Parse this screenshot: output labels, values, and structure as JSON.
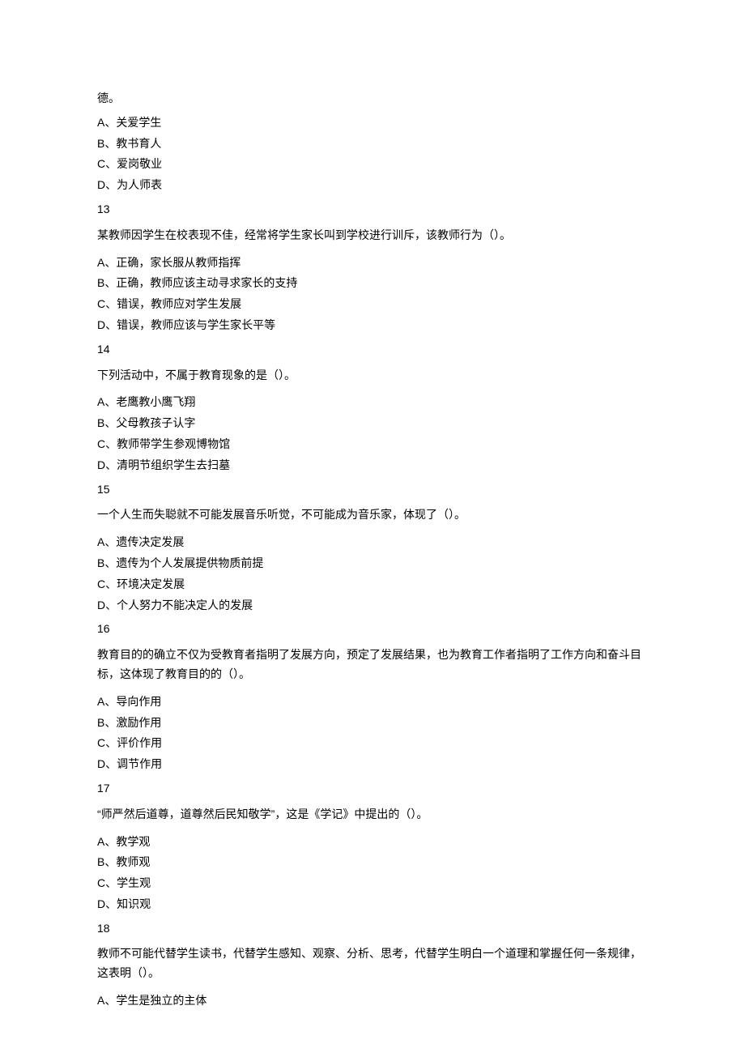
{
  "fragment_top": "德。",
  "top_options": [
    "A、关爱学生",
    "B、教书育人",
    "C、爱岗敬业",
    "D、为人师表"
  ],
  "questions": [
    {
      "num": "13",
      "stem": "某教师因学生在校表现不佳，经常将学生家长叫到学校进行训斥，该教师行为（）。",
      "options": [
        "A、正确，家长服从教师指挥",
        "B、正确，教师应该主动寻求家长的支持",
        "C、错误，教师应对学生发展",
        "D、错误，教师应该与学生家长平等"
      ]
    },
    {
      "num": "14",
      "stem": "下列活动中，不属于教育现象的是（）。",
      "options": [
        "A、老鹰教小鹰飞翔",
        "B、父母教孩子认字",
        "C、教师带学生参观博物馆",
        "D、清明节组织学生去扫墓"
      ]
    },
    {
      "num": "15",
      "stem": "一个人生而失聪就不可能发展音乐听觉，不可能成为音乐家，体现了（）。",
      "options": [
        "A、遗传决定发展",
        "B、遗传为个人发展提供物质前提",
        "C、环境决定发展",
        "D、个人努力不能决定人的发展"
      ]
    },
    {
      "num": "16",
      "stem": "教育目的的确立不仅为受教育者指明了发展方向，预定了发展结果，也为教育工作者指明了工作方向和奋斗目标，这体现了教育目的的（）。",
      "options": [
        "A、导向作用",
        "B、激励作用",
        "C、评价作用",
        "D、调节作用"
      ]
    },
    {
      "num": "17",
      "stem": "“师严然后道尊，道尊然后民知敬学”，这是《学记》中提出的（）。",
      "options": [
        "A、教学观",
        "B、教师观",
        "C、学生观",
        "D、知识观"
      ]
    },
    {
      "num": "18",
      "stem": "教师不可能代替学生读书，代替学生感知、观察、分析、思考，代替学生明白一个道理和掌握任何一条规律，这表明（）。",
      "options": [
        "A、学生是独立的主体"
      ]
    }
  ]
}
